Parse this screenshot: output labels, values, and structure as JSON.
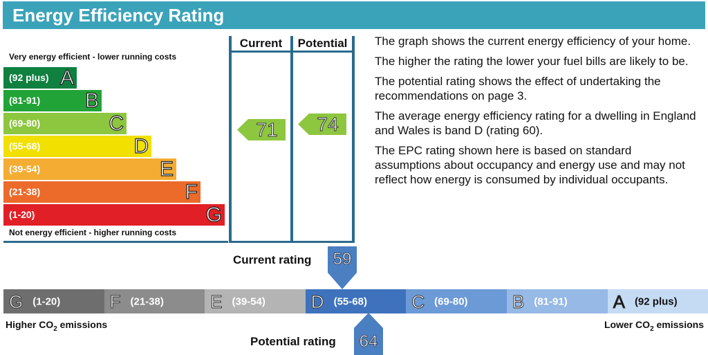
{
  "title": "Energy Efficiency Rating",
  "top_note": "Very energy efficient - lower running costs",
  "bottom_note": "Not energy efficient - higher running costs",
  "columns": {
    "current": "Current",
    "potential": "Potential"
  },
  "bands": [
    {
      "range": "(92 plus)",
      "letter": "A",
      "color": "#0f8040"
    },
    {
      "range": "(81-91)",
      "letter": "B",
      "color": "#22a338"
    },
    {
      "range": "(69-80)",
      "letter": "C",
      "color": "#8dc63f"
    },
    {
      "range": "(55-68)",
      "letter": "D",
      "color": "#f2e000"
    },
    {
      "range": "(39-54)",
      "letter": "E",
      "color": "#f4ac33"
    },
    {
      "range": "(21-38)",
      "letter": "F",
      "color": "#ec6a2a"
    },
    {
      "range": "(1-20)",
      "letter": "G",
      "color": "#e11f26"
    }
  ],
  "current_rating": {
    "value": "71",
    "band": "C",
    "color": "#8dc63f"
  },
  "potential_rating": {
    "value": "74",
    "band": "C",
    "color": "#8dc63f"
  },
  "description": [
    "The graph shows the current energy efficiency of your home.",
    "The higher the rating the lower your fuel bills are likely to be.",
    "The potential rating shows the effect of undertaking the recommendations on page 3.",
    "The average energy efficiency rating for a dwelling in England and Wales is band D (rating 60).",
    "The EPC rating shown here is based on standard assumptions about occupancy and energy use and may not reflect how energy is consumed by individual occupants."
  ],
  "co2": {
    "current_label": "Current rating",
    "current_value": "59",
    "potential_label": "Potential rating",
    "potential_value": "64",
    "left_label": "Higher CO",
    "right_label": "Lower CO",
    "label_suffix": " emissions",
    "sub": "2",
    "marker_color": "#4a7fc1",
    "bands": [
      {
        "letter": "G",
        "range": "(1-20)",
        "color": "#6e6e6e"
      },
      {
        "letter": "F",
        "range": "(21-38)",
        "color": "#8c8c8c"
      },
      {
        "letter": "E",
        "range": "(39-54)",
        "color": "#b4b4b4"
      },
      {
        "letter": "D",
        "range": "(55-68)",
        "color": "#3e72bd"
      },
      {
        "letter": "C",
        "range": "(69-80)",
        "color": "#6c9ad6"
      },
      {
        "letter": "B",
        "range": "(81-91)",
        "color": "#97b9e6"
      },
      {
        "letter": "A",
        "range": "(92 plus)",
        "color": "#c5dbf4"
      }
    ]
  }
}
